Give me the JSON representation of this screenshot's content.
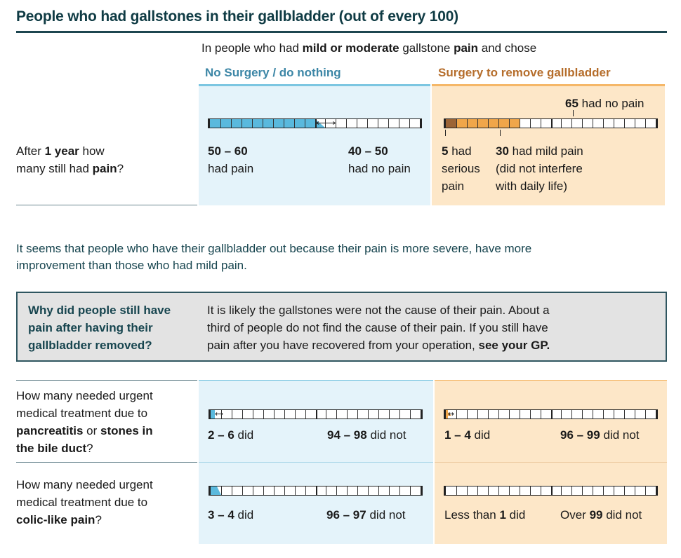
{
  "title": "People who had gallstones in their gallbladder (out of every 100)",
  "intro": {
    "pre": "In people who had ",
    "bold1": "mild or moderate",
    "mid": " gallstone ",
    "bold2": "pain",
    "post": " and chose"
  },
  "headers": {
    "no_surgery": "No Surgery / do nothing",
    "surgery": "Surgery to remove gallbladder"
  },
  "row1": {
    "question": {
      "pre": "After ",
      "bold1": "1 year",
      "mid": " how",
      "line2": "many still had ",
      "bold2": "pain",
      "post": "?"
    },
    "no_surgery": {
      "left_value": "50 – 60",
      "left_label": "had pain",
      "right_value": "40 – 50",
      "right_label": "had no pain",
      "bar_fill_min": 50,
      "bar_fill_max": 60
    },
    "surgery": {
      "top_value": "65",
      "top_label": " had no pain",
      "serious_value": "5",
      "serious_label1": " had",
      "serious_label2": "serious",
      "serious_label3": "pain",
      "mild_value": "30",
      "mild_label1": " had mild pain",
      "mild_label2": "(did not interfere",
      "mild_label3": "with daily life)",
      "bar_serious": 5,
      "bar_mild": 30
    }
  },
  "note": {
    "line1": "It seems that people who have their gallbladder out because their pain is more severe,  have more",
    "line2": "improvement than those who had mild pain."
  },
  "box": {
    "question": [
      "Why did people still have",
      "pain after having their",
      "gallbladder removed?"
    ],
    "answer1": "It is likely the gallstones were not the cause of their pain. About a",
    "answer2": "third of people do not find the cause of their pain. If you still have",
    "answer3": "pain after you have recovered from your operation, ",
    "answer_bold": "see your GP."
  },
  "row2": {
    "question": {
      "line1": "How many needed urgent",
      "line2": "medical treatment due to",
      "bold1": "pancreatitis",
      "or": " or ",
      "bold2": "stones in",
      "bold3": "the bile duct",
      "post": "?"
    },
    "no_surgery": {
      "left_value": "2 – 6",
      "left_label": " did",
      "right_value": "94 – 98",
      "right_label": " did not",
      "bar_min": 2,
      "bar_max": 6
    },
    "surgery": {
      "left_value": "1 – 4",
      "left_label": " did",
      "right_value": "96 – 99",
      "right_label": " did not",
      "bar_min": 1,
      "bar_max": 4
    }
  },
  "row3": {
    "question": {
      "line1": "How many needed urgent",
      "line2": "medical treatment due to",
      "bold": "colic-like pain",
      "post": "?"
    },
    "no_surgery": {
      "left_value": "3 – 4",
      "left_label": " did",
      "right_value": "96 – 97",
      "right_label": " did not",
      "bar_min": 3,
      "bar_max": 4
    },
    "surgery": {
      "left_pre": "Less than ",
      "left_value": "1",
      "left_label": " did",
      "right_pre": "Over ",
      "right_value": "99",
      "right_label": " did not"
    }
  },
  "colors": {
    "blue": "#5ab9dd",
    "orange": "#f0a64a",
    "dark_orange": "#9c6436",
    "teal": "#0f3b44"
  }
}
